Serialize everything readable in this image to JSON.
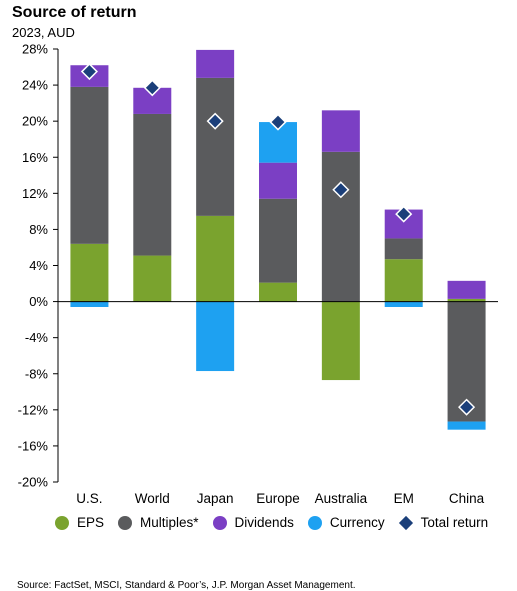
{
  "header": {
    "title": "Source of return",
    "subtitle": "2023, AUD"
  },
  "footer": {
    "source": "Source: FactSet, MSCI, Standard & Poor’s, J.P. Morgan Asset Management."
  },
  "chart_data": {
    "type": "bar",
    "stacked": true,
    "categories": [
      "U.S.",
      "World",
      "Japan",
      "Europe",
      "Australia",
      "EM",
      "China"
    ],
    "series": [
      {
        "name": "EPS",
        "color": "#7aa32e",
        "values": [
          6.4,
          5.1,
          9.5,
          2.1,
          -8.7,
          4.7,
          0.3
        ]
      },
      {
        "name": "Multiples*",
        "color": "#5a5b5d",
        "values": [
          17.4,
          15.7,
          15.3,
          9.3,
          16.6,
          2.3,
          -13.3
        ]
      },
      {
        "name": "Dividends",
        "color": "#7b3fc4",
        "values": [
          2.4,
          2.9,
          3.1,
          4.0,
          4.6,
          3.2,
          2.0
        ]
      },
      {
        "name": "Currency",
        "color": "#1ea1f1",
        "values": [
          -0.6,
          0.0,
          -7.7,
          4.5,
          0.0,
          -0.6,
          -0.9
        ]
      }
    ],
    "total_return": {
      "name": "Total return",
      "color": "#1b3f7a",
      "values": [
        25.5,
        23.7,
        20.0,
        19.9,
        12.4,
        9.7,
        -11.7
      ]
    },
    "yticks": [
      "28%",
      "24%",
      "20%",
      "16%",
      "12%",
      "8%",
      "4%",
      "0%",
      "-4%",
      "-8%",
      "-12%",
      "-16%",
      "-20%"
    ],
    "ylim": [
      -20,
      28
    ],
    "grid": false,
    "legend_position": "bottom"
  }
}
